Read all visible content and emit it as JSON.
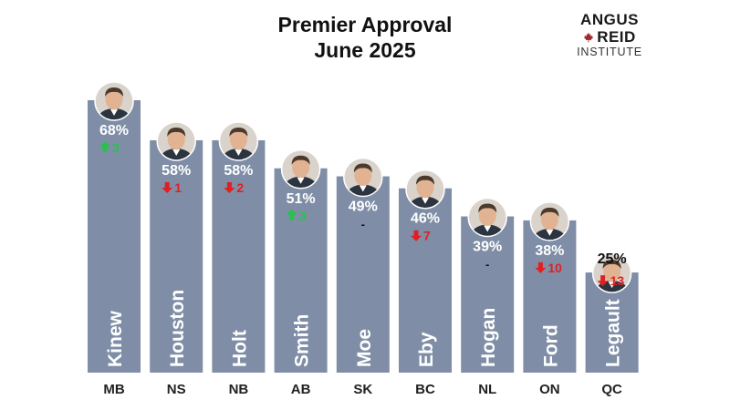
{
  "header": {
    "title_line1": "Premier Approval",
    "title_line2": "June 2025"
  },
  "logo": {
    "word1": "ANGUS",
    "word2": "REID",
    "word3": "INSTITUTE",
    "leaf_color": "#a3272e"
  },
  "colors": {
    "bar": "#7f8ea6",
    "up": "#27c24c",
    "down": "#e02020",
    "pct_on_bar": "#ffffff",
    "pct_off_bar": "#111111"
  },
  "chart_data": {
    "type": "bar",
    "title": "Premier Approval June 2025",
    "categories": [
      "MB",
      "NS",
      "NB",
      "AB",
      "SK",
      "BC",
      "NL",
      "ON",
      "QC"
    ],
    "names": [
      "Kinew",
      "Houston",
      "Holt",
      "Smith",
      "Moe",
      "Eby",
      "Hogan",
      "Ford",
      "Legault"
    ],
    "values": [
      68,
      58,
      58,
      51,
      49,
      46,
      39,
      38,
      25
    ],
    "value_labels": [
      "68%",
      "58%",
      "58%",
      "51%",
      "49%",
      "46%",
      "39%",
      "38%",
      "25%"
    ],
    "change_direction": [
      "up",
      "down",
      "down",
      "up",
      "none",
      "down",
      "none",
      "down",
      "down"
    ],
    "change_labels": [
      "3",
      "1",
      "2",
      "3",
      "-",
      "7",
      "-",
      "10",
      "13"
    ],
    "ylim": [
      0,
      70
    ],
    "grid": false,
    "legend": "none",
    "photo_avatars": true
  }
}
